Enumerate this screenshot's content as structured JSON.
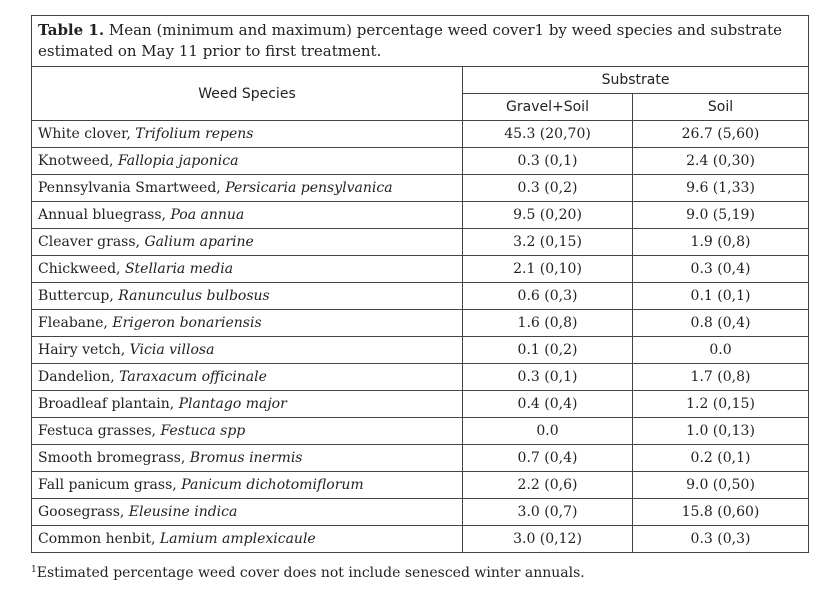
{
  "caption": {
    "label": "Table 1.",
    "text": "Mean (minimum and maximum) percentage weed cover1 by weed species and substrate estimated on May 11 prior to first treatment."
  },
  "header": {
    "species": "Weed Species",
    "group": "Substrate",
    "columns": [
      "Gravel+Soil",
      "Soil"
    ]
  },
  "rows": [
    {
      "common": "White clover,",
      "scientific": "Trifolium repens",
      "values": [
        "45.3 (20,70)",
        "26.7 (5,60)"
      ]
    },
    {
      "common": "Knotweed,",
      "scientific": "Fallopia japonica",
      "values": [
        "0.3 (0,1)",
        "2.4 (0,30)"
      ]
    },
    {
      "common": "Pennsylvania Smartweed,",
      "scientific": "Persicaria pensylvanica",
      "values": [
        "0.3 (0,2)",
        "9.6 (1,33)"
      ]
    },
    {
      "common": "Annual bluegrass,",
      "scientific": "Poa annua",
      "values": [
        "9.5 (0,20)",
        "9.0 (5,19)"
      ]
    },
    {
      "common": "Cleaver grass,",
      "scientific": "Galium aparine",
      "values": [
        "3.2 (0,15)",
        "1.9 (0,8)"
      ]
    },
    {
      "common": "Chickweed,",
      "scientific": "Stellaria media",
      "values": [
        "2.1 (0,10)",
        "0.3 (0,4)"
      ]
    },
    {
      "common": "Buttercup,",
      "scientific": "Ranunculus bulbosus",
      "values": [
        "0.6 (0,3)",
        "0.1 (0,1)"
      ]
    },
    {
      "common": "Fleabane,",
      "scientific": "Erigeron bonariensis",
      "values": [
        "1.6 (0,8)",
        "0.8 (0,4)"
      ]
    },
    {
      "common": "Hairy vetch,",
      "scientific": "Vicia villosa",
      "values": [
        "0.1 (0,2)",
        "0.0"
      ]
    },
    {
      "common": "Dandelion,",
      "scientific": "Taraxacum officinale",
      "values": [
        "0.3 (0,1)",
        "1.7 (0,8)"
      ]
    },
    {
      "common": "Broadleaf plantain,",
      "scientific": "Plantago major",
      "values": [
        "0.4 (0,4)",
        "1.2 (0,15)"
      ]
    },
    {
      "common": "Festuca grasses,",
      "scientific": "Festuca spp",
      "values": [
        "0.0",
        "1.0 (0,13)"
      ]
    },
    {
      "common": "Smooth bromegrass,",
      "scientific": "Bromus inermis",
      "values": [
        "0.7 (0,4)",
        "0.2 (0,1)"
      ]
    },
    {
      "common": "Fall panicum grass,",
      "scientific": "Panicum dichotomiflorum",
      "values": [
        "2.2 (0,6)",
        "9.0 (0,50)"
      ]
    },
    {
      "common": "Goosegrass,",
      "scientific": "Eleusine indica",
      "values": [
        "3.0 (0,7)",
        "15.8 (0,60)"
      ]
    },
    {
      "common": "Common henbit,",
      "scientific": "Lamium amplexicaule",
      "values": [
        "3.0 (0,12)",
        "0.3 (0,3)"
      ]
    }
  ],
  "footnote": {
    "marker": "1",
    "text": "Estimated percentage weed cover does not include senesced winter annuals."
  }
}
